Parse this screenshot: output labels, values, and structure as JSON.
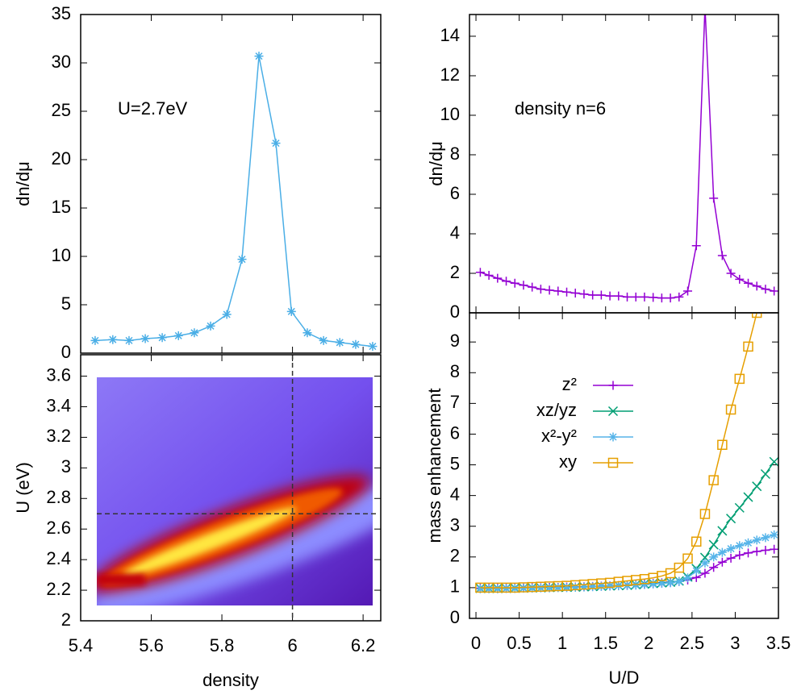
{
  "chart_data": [
    {
      "type": "line",
      "ylabel": "dn/dμ",
      "annotation": "U=2.7eV",
      "xlim": [
        5.4,
        6.25
      ],
      "xticks": [
        5.4,
        5.6,
        5.8,
        6,
        6.2
      ],
      "ylim": [
        0,
        35
      ],
      "yticks": [
        0,
        5,
        10,
        15,
        20,
        25,
        30,
        35
      ],
      "series": [
        {
          "color": "#4aaee6",
          "marker": "asterisk",
          "x": [
            5.441,
            5.491,
            5.537,
            5.583,
            5.631,
            5.677,
            5.722,
            5.768,
            5.814,
            5.857,
            5.905,
            5.953,
            5.997,
            6.042,
            6.088,
            6.134,
            6.179,
            6.227
          ],
          "values": [
            1.3,
            1.4,
            1.3,
            1.5,
            1.6,
            1.8,
            2.1,
            2.8,
            4.0,
            9.7,
            30.7,
            21.7,
            4.3,
            2.1,
            1.3,
            1.1,
            0.9,
            0.7
          ]
        }
      ]
    },
    {
      "type": "heatmap",
      "xlabel": "density",
      "ylabel": "U (eV)",
      "xlim": [
        5.4,
        6.25
      ],
      "xticks": [
        5.4,
        5.6,
        5.8,
        6,
        6.2
      ],
      "ylim": [
        2,
        3.74
      ],
      "yticks": [
        2,
        2.2,
        2.4,
        2.6,
        2.8,
        3,
        3.2,
        3.4,
        3.6
      ],
      "vline": 6,
      "hline": 2.7
    },
    {
      "type": "line",
      "ylabel": "dn/dμ",
      "annotation": "density n=6",
      "xlim": [
        -0.075,
        3.5
      ],
      "xticks": [
        0,
        0.5,
        1,
        1.5,
        2,
        2.5,
        3,
        3.5
      ],
      "ylim": [
        0,
        15.1
      ],
      "yticks": [
        0,
        2,
        4,
        6,
        8,
        10,
        12,
        14
      ],
      "series": [
        {
          "color": "#9400d3",
          "marker": "plus",
          "x": [
            0.05,
            0.15,
            0.25,
            0.35,
            0.45,
            0.55,
            0.65,
            0.75,
            0.85,
            0.95,
            1.05,
            1.15,
            1.25,
            1.35,
            1.45,
            1.55,
            1.65,
            1.75,
            1.85,
            1.95,
            2.05,
            2.15,
            2.25,
            2.35,
            2.45,
            2.55,
            2.65,
            2.75,
            2.85,
            2.95,
            3.05,
            3.15,
            3.25,
            3.35,
            3.45
          ],
          "values": [
            2.05,
            1.9,
            1.75,
            1.6,
            1.5,
            1.4,
            1.3,
            1.2,
            1.15,
            1.1,
            1.05,
            1.0,
            0.95,
            0.9,
            0.9,
            0.85,
            0.85,
            0.8,
            0.8,
            0.8,
            0.78,
            0.75,
            0.75,
            0.8,
            1.1,
            3.4,
            15.5,
            5.8,
            2.9,
            2.0,
            1.7,
            1.5,
            1.35,
            1.2,
            1.1
          ]
        }
      ]
    },
    {
      "type": "line",
      "xlabel": "U/D",
      "ylabel": "mass enhancement",
      "legend": "upper left",
      "xlim": [
        -0.075,
        3.5
      ],
      "xticks": [
        0,
        0.5,
        1,
        1.5,
        2,
        2.5,
        3,
        3.5
      ],
      "ylim": [
        0,
        9.95
      ],
      "yticks": [
        0,
        1,
        2,
        3,
        4,
        5,
        6,
        7,
        8,
        9
      ],
      "x": [
        0.05,
        0.15,
        0.25,
        0.35,
        0.45,
        0.55,
        0.65,
        0.75,
        0.85,
        0.95,
        1.05,
        1.15,
        1.25,
        1.35,
        1.45,
        1.55,
        1.65,
        1.75,
        1.85,
        1.95,
        2.05,
        2.15,
        2.25,
        2.35,
        2.45,
        2.55,
        2.65,
        2.75,
        2.85,
        2.95,
        3.05,
        3.15,
        3.25,
        3.35,
        3.45
      ],
      "series": [
        {
          "name": "z²",
          "color": "#9400d3",
          "marker": "plus",
          "values": [
            0.98,
            0.98,
            0.98,
            0.98,
            0.99,
            0.99,
            1.0,
            1.0,
            1.01,
            1.01,
            1.02,
            1.02,
            1.03,
            1.04,
            1.05,
            1.06,
            1.07,
            1.08,
            1.1,
            1.12,
            1.14,
            1.16,
            1.18,
            1.2,
            1.25,
            1.33,
            1.47,
            1.66,
            1.83,
            1.96,
            2.06,
            2.13,
            2.18,
            2.22,
            2.25
          ]
        },
        {
          "name": "xz/yz",
          "color": "#009e73",
          "marker": "cross",
          "values": [
            0.98,
            0.98,
            0.98,
            0.98,
            0.99,
            0.99,
            1.0,
            1.0,
            1.01,
            1.01,
            1.02,
            1.02,
            1.03,
            1.04,
            1.05,
            1.06,
            1.07,
            1.08,
            1.1,
            1.12,
            1.14,
            1.16,
            1.18,
            1.22,
            1.35,
            1.62,
            1.98,
            2.4,
            2.85,
            3.25,
            3.6,
            3.95,
            4.3,
            4.7,
            5.1
          ]
        },
        {
          "name": "x²-y²",
          "color": "#56b4e9",
          "marker": "asterisk",
          "values": [
            0.96,
            0.96,
            0.96,
            0.97,
            0.97,
            0.98,
            0.98,
            0.99,
            0.99,
            1.0,
            1.0,
            1.01,
            1.02,
            1.03,
            1.04,
            1.05,
            1.06,
            1.07,
            1.08,
            1.1,
            1.12,
            1.14,
            1.16,
            1.2,
            1.32,
            1.55,
            1.8,
            2.0,
            2.15,
            2.27,
            2.37,
            2.46,
            2.55,
            2.63,
            2.72
          ]
        },
        {
          "name": "xy",
          "color": "#e69f00",
          "marker": "square",
          "values": [
            1.0,
            1.0,
            1.0,
            1.0,
            1.0,
            1.01,
            1.02,
            1.03,
            1.04,
            1.05,
            1.06,
            1.08,
            1.1,
            1.12,
            1.14,
            1.16,
            1.19,
            1.22,
            1.25,
            1.28,
            1.32,
            1.38,
            1.47,
            1.65,
            1.95,
            2.5,
            3.4,
            4.5,
            5.65,
            6.8,
            7.8,
            8.85,
            9.95,
            null,
            null
          ]
        }
      ]
    }
  ]
}
